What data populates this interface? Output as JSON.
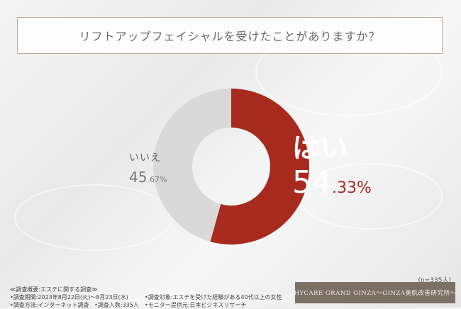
{
  "question": "リフトアップフェイシャルを受けたことがありますか？",
  "chart_data": {
    "type": "pie",
    "categories": [
      "はい",
      "いいえ"
    ],
    "values": [
      54.33,
      45.67
    ],
    "unit": "%",
    "colors": [
      "#a82a1f",
      "#d9d9d9"
    ]
  },
  "labels": {
    "yes": {
      "name": "はい",
      "value_int": "54",
      "value_dec": ".33%"
    },
    "no": {
      "name": "いいえ",
      "value_int": "45",
      "value_dec": ".67%"
    }
  },
  "sample_size": "(n=335人)",
  "survey": {
    "overview": "≪調査概要:エステに関する調査≫",
    "period": "•調査期間:2023年8月22日(火)〜8月23日(水)",
    "target": "•調査対象:エステを受けた経験がある40代以上の女性",
    "method": "•調査方法:インターネット調査",
    "count": "•調査人数:335人",
    "provider": "•モニター提供元:日本ビジネスリサーチ"
  },
  "brand": "HYCARE GRAND GINZA〜GINZA美肌改善研究所〜"
}
